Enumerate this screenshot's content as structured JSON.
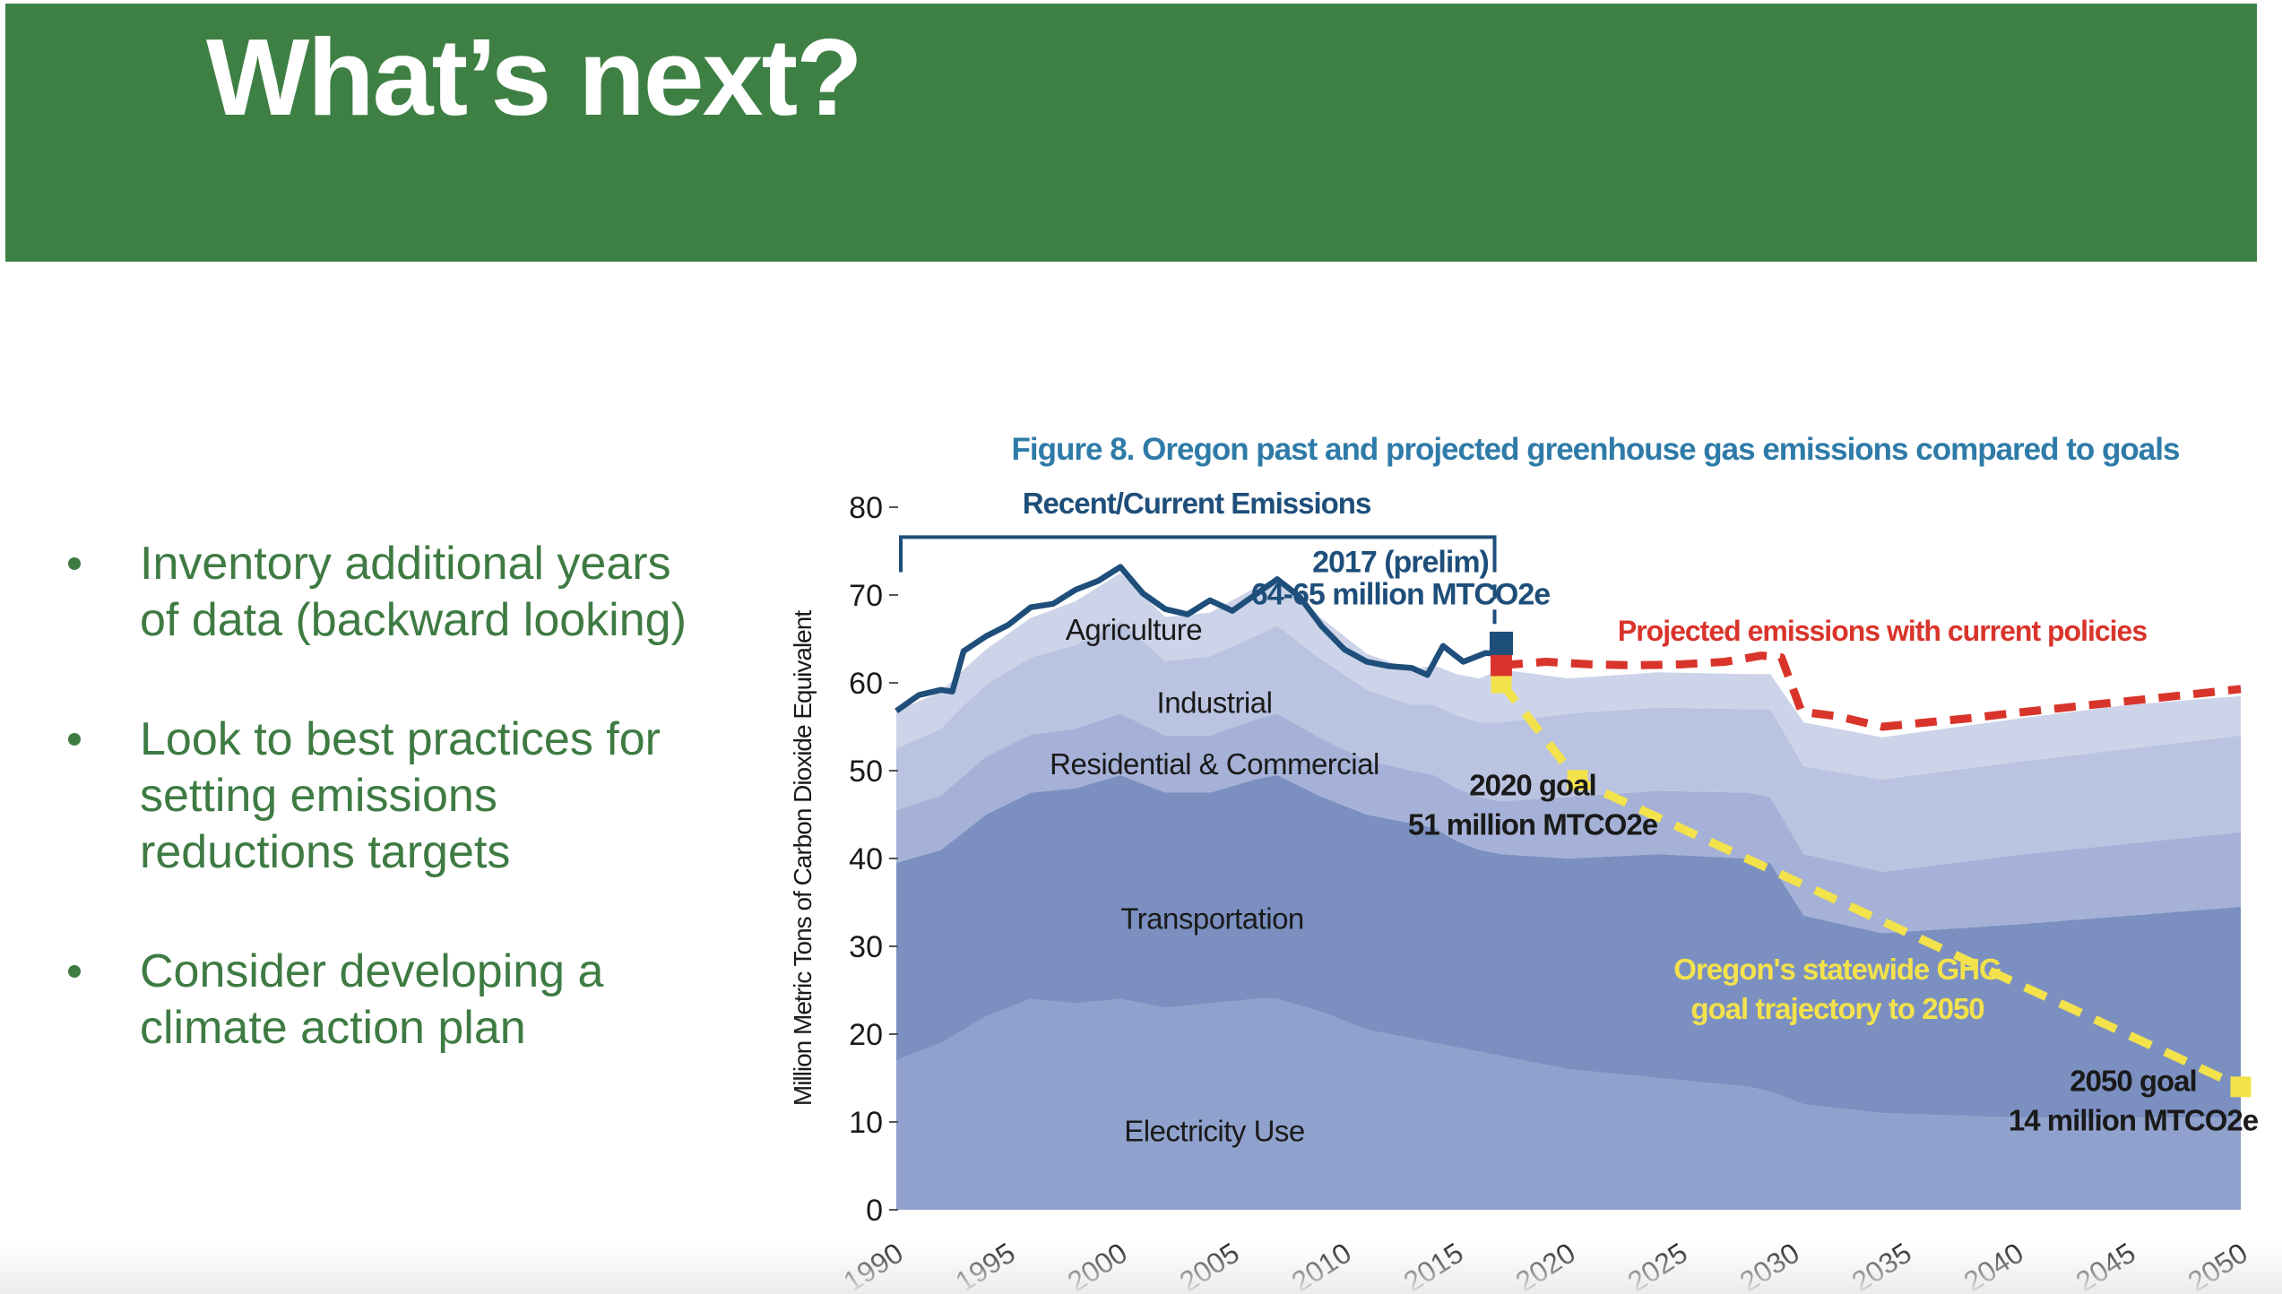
{
  "slide": {
    "title": "What’s next?",
    "bullets": [
      "Inventory additional years of data (backward looking)",
      "Look to best practices for setting emissions reductions targets",
      "Consider developing a climate action plan"
    ],
    "colors": {
      "banner_green": "#3e8044",
      "bullet_green": "#3e7b43"
    }
  },
  "chart_data": {
    "type": "area",
    "title": "Figure 8. Oregon past and projected greenhouse gas emissions compared to goals",
    "xlabel": "",
    "ylabel": "Million Metric Tons of Carbon Dioxide Equivalent",
    "ylim": [
      0,
      80
    ],
    "x_range": [
      1990,
      2050
    ],
    "x_ticks": [
      1990,
      1995,
      2000,
      2005,
      2010,
      2015,
      2020,
      2025,
      2030,
      2035,
      2040,
      2045,
      2050
    ],
    "y_ticks": [
      0,
      10,
      20,
      30,
      40,
      50,
      60,
      70,
      80
    ],
    "grid": false,
    "colors": {
      "navy": "#1e4e7a",
      "red": "#d9342b",
      "yellow": "#f3e24b",
      "black": "#1a1a1a",
      "title_teal": "#2e7ba8"
    },
    "stack_years": [
      1990,
      1992,
      1993,
      1994,
      1996,
      1998,
      2000,
      2002,
      2004,
      2006,
      2007,
      2009,
      2011,
      2013,
      2014,
      2015,
      2016,
      2017,
      2020,
      2024,
      2028,
      2029,
      2030.5,
      2034,
      2040,
      2045,
      2050
    ],
    "series": [
      {
        "name": "Electricity Use",
        "color": "#8fa1cc",
        "label_pos": [
          2004.2,
          7.8
        ],
        "values": [
          17,
          19,
          20.5,
          22,
          24,
          23.5,
          24,
          23,
          23.5,
          24,
          24,
          22.5,
          20.5,
          19.5,
          19,
          18.5,
          18,
          17.5,
          16,
          15,
          14,
          13.5,
          12,
          11,
          10.5,
          10.5,
          10.5
        ]
      },
      {
        "name": "Transportation",
        "color": "#7b90c1",
        "label_pos": [
          2004.1,
          32
        ],
        "values": [
          22.5,
          22,
          22.5,
          23,
          23.5,
          24.5,
          25.5,
          24.5,
          24,
          25,
          25.5,
          24.5,
          24.5,
          24.5,
          24.5,
          23.5,
          23,
          23,
          24,
          25.5,
          26,
          26,
          21.5,
          20.5,
          22,
          23,
          24
        ]
      },
      {
        "name": "Residential & Commercial",
        "color": "#a5b1d6",
        "label_pos": [
          2004.2,
          49.6
        ],
        "values": [
          6,
          6.2,
          6.4,
          6.6,
          6.6,
          6.8,
          7,
          6.5,
          6.5,
          6.8,
          7,
          6.6,
          6.2,
          6,
          6,
          6,
          6,
          6,
          7,
          7.2,
          7.5,
          7.5,
          7,
          7,
          7.9,
          8.2,
          8.5
        ]
      },
      {
        "name": "Industrial",
        "color": "#bac3e0",
        "label_pos": [
          2004.2,
          56.6
        ],
        "values": [
          7,
          7.6,
          8,
          8.2,
          8.8,
          9.5,
          10.5,
          8.5,
          9,
          9.5,
          10,
          9,
          8,
          7.5,
          8,
          8.3,
          8.5,
          9,
          9.5,
          9.5,
          9.5,
          10,
          10,
          10.5,
          10.6,
          10.8,
          11
        ]
      },
      {
        "name": "Agriculture",
        "color": "#cdd4e9",
        "label_pos": [
          2000.6,
          64.9
        ],
        "values": [
          4.3,
          4.2,
          4.1,
          4,
          4.5,
          5,
          5.5,
          5,
          5,
          5.5,
          5.5,
          4.7,
          4.1,
          4,
          4.5,
          4.7,
          5,
          6,
          4,
          4,
          4,
          4,
          5,
          4.8,
          4.9,
          5,
          4.5
        ]
      }
    ],
    "total_line": {
      "name": "Recent/Current Emissions",
      "color": "navy",
      "points": [
        [
          1990,
          56.8
        ],
        [
          1991,
          58.6
        ],
        [
          1992,
          59.2
        ],
        [
          1992.5,
          59
        ],
        [
          1993,
          63.6
        ],
        [
          1994,
          65.3
        ],
        [
          1995,
          66.6
        ],
        [
          1996,
          68.6
        ],
        [
          1997,
          69
        ],
        [
          1998,
          70.6
        ],
        [
          1999,
          71.6
        ],
        [
          2000,
          73.2
        ],
        [
          2001,
          70.2
        ],
        [
          2002,
          68.4
        ],
        [
          2003,
          67.8
        ],
        [
          2004,
          69.4
        ],
        [
          2005,
          68.2
        ],
        [
          2006,
          70
        ],
        [
          2007,
          71.8
        ],
        [
          2008,
          69.8
        ],
        [
          2009,
          66.4
        ],
        [
          2010,
          63.8
        ],
        [
          2011,
          62.4
        ],
        [
          2012,
          61.9
        ],
        [
          2013,
          61.7
        ],
        [
          2013.7,
          60.9
        ],
        [
          2014.4,
          64.2
        ],
        [
          2015.3,
          62.4
        ],
        [
          2016.3,
          63.4
        ],
        [
          2016.8,
          63.3
        ],
        [
          2017,
          64.4
        ]
      ]
    },
    "projected_line": {
      "name": "Projected emissions with current policies",
      "color": "red",
      "points": [
        [
          2017,
          62
        ],
        [
          2019,
          62.4
        ],
        [
          2021,
          62.1
        ],
        [
          2023,
          62
        ],
        [
          2025,
          62.1
        ],
        [
          2027,
          62.4
        ],
        [
          2028.6,
          63.1
        ],
        [
          2029.5,
          62.9
        ],
        [
          2030.4,
          56.7
        ],
        [
          2032,
          56.2
        ],
        [
          2034,
          55
        ],
        [
          2036,
          55.5
        ],
        [
          2038,
          56
        ],
        [
          2040,
          56.6
        ],
        [
          2043,
          57.4
        ],
        [
          2046,
          58.2
        ],
        [
          2050,
          59.3
        ]
      ]
    },
    "goal_line": {
      "name": "Oregon's statewide GHG goal trajectory to 2050",
      "color": "yellow",
      "points": [
        [
          2017,
          60
        ],
        [
          2020.4,
          48.9
        ],
        [
          2050,
          14
        ]
      ],
      "markers": [
        [
          2017,
          60
        ],
        [
          2020.4,
          48.9
        ],
        [
          2050,
          14
        ]
      ]
    },
    "goals": [
      {
        "year": 2020,
        "value": 51
      },
      {
        "year": 2050,
        "value": 14
      }
    ],
    "markers_2017": {
      "estimate_blue": [
        2017,
        64.5
      ],
      "projection_start_red": [
        2017,
        62
      ]
    },
    "bracket": {
      "from": 1990.2,
      "to": 2016.7,
      "value": 76.6,
      "tick_drop": 4
    },
    "callout_dash": {
      "year": 2016.7,
      "from": 71.2,
      "to": 66.5
    },
    "labels": [
      {
        "name": "recent-current-emissions-label",
        "lines": [
          "Recent/Current Emissions"
        ],
        "year": 2003.4,
        "value": 79.3,
        "size": 33,
        "weight": "bold",
        "color": "navy",
        "line_gap": 36
      },
      {
        "name": "prelim-2017-label",
        "lines": [
          "2017 (prelim)",
          "64-65 million MTCO2e"
        ],
        "year": 2012.5,
        "value": 72.6,
        "size": 34,
        "weight": "bold",
        "color": "navy",
        "line_gap": 36
      },
      {
        "name": "projected-emissions-label",
        "lines": [
          "Projected emissions with current policies"
        ],
        "year": 2034,
        "value": 64.8,
        "size": 32,
        "weight": "bold",
        "color": "red",
        "line_gap": 36
      },
      {
        "name": "goal-2020-label",
        "lines": [
          "2020 goal",
          "51 million MTCO2e"
        ],
        "year": 2018.4,
        "value": 47.2,
        "size": 33,
        "weight": "bold",
        "color": "black",
        "line_gap": 44
      },
      {
        "name": "goal-2050-label",
        "lines": [
          "2050 goal",
          "14 million MTCO2e"
        ],
        "year": 2045.2,
        "value": 13.5,
        "size": 33,
        "weight": "bold",
        "color": "black",
        "line_gap": 44
      },
      {
        "name": "ghg-trajectory-label",
        "lines": [
          "Oregon's statewide GHG",
          "goal trajectory to 2050"
        ],
        "year": 2032,
        "value": 26.2,
        "size": 33,
        "weight": "bold",
        "color": "yellow",
        "line_gap": 44
      }
    ]
  }
}
